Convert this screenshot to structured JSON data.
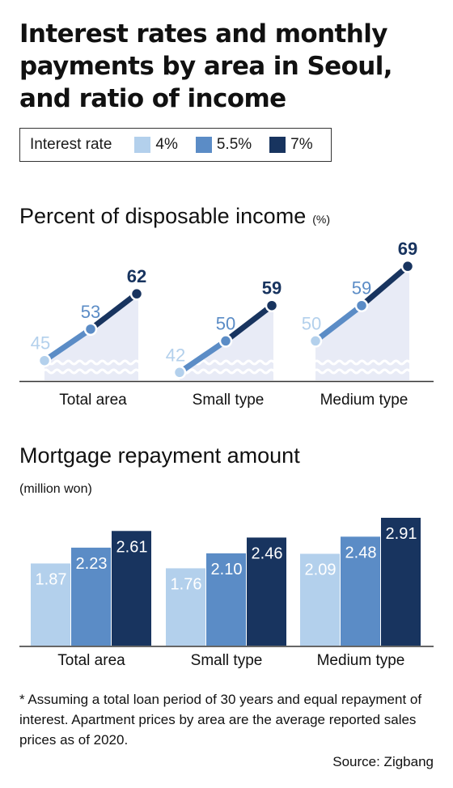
{
  "title": "Interest rates and monthly payments by area in Seoul, and ratio of income",
  "legend": {
    "title": "Interest rate",
    "items": [
      {
        "label": "4%",
        "color": "#b3d0ec"
      },
      {
        "label": "5.5%",
        "color": "#5b8cc6"
      },
      {
        "label": "7%",
        "color": "#18345f"
      }
    ]
  },
  "chart_data": [
    {
      "type": "line",
      "title": "Percent of disposable income",
      "unit": "(%)",
      "categories": [
        "Total area",
        "Small type",
        "Medium type"
      ],
      "series_labels": [
        "4%",
        "5.5%",
        "7%"
      ],
      "values": [
        [
          45,
          53,
          62
        ],
        [
          42,
          50,
          59
        ],
        [
          50,
          59,
          69
        ]
      ],
      "ylim": [
        0,
        75
      ]
    },
    {
      "type": "bar",
      "title": "Mortgage repayment amount",
      "unit": "(million won)",
      "categories": [
        "Total area",
        "Small type",
        "Medium type"
      ],
      "series": [
        {
          "name": "4%",
          "values": [
            "1.87",
            "1.76",
            "2.09"
          ]
        },
        {
          "name": "5.5%",
          "values": [
            "2.23",
            "2.10",
            "2.48"
          ]
        },
        {
          "name": "7%",
          "values": [
            "2.61",
            "2.46",
            "2.91"
          ]
        }
      ],
      "ylim": [
        0,
        3.3
      ]
    }
  ],
  "footnote": "* Assuming a total loan period of 30 years and equal repayment of interest. Apartment prices by area are the average reported sales prices as of 2020.",
  "source": "Source: Zigbang"
}
